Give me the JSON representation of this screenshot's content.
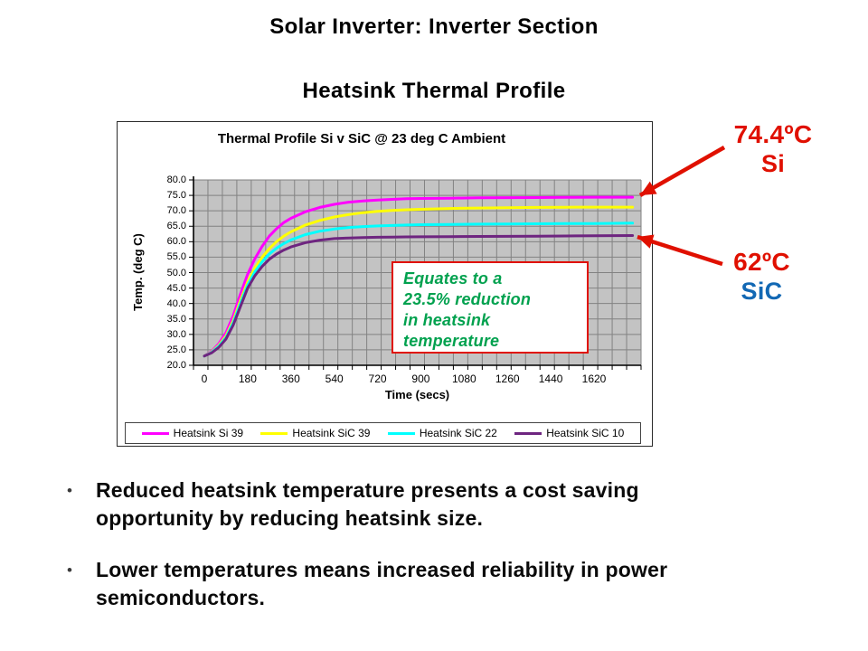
{
  "slide": {
    "title": "Solar Inverter: Inverter Section",
    "subtitle": "Heatsink Thermal Profile",
    "bullets": [
      {
        "lines": [
          "Reduced heatsink temperature presents a cost saving",
          "opportunity by reducing heatsink size."
        ]
      },
      {
        "lines": [
          "Lower temperatures means increased reliability in power",
          "semiconductors."
        ]
      }
    ]
  },
  "callouts": {
    "arrow_color": "#e01000",
    "si": {
      "value": "74.4ºC",
      "label": "Si",
      "value_color": "#e01000",
      "label_color": "#e01000"
    },
    "sic": {
      "value": "62ºC",
      "label": "SiC",
      "value_color": "#e01000",
      "label_color": "#1268b4"
    }
  },
  "chart_data": {
    "type": "line",
    "title": "Thermal Profile Si v SiC @ 23 deg C Ambient",
    "xlabel": "Time (secs)",
    "ylabel": "Temp. (deg C)",
    "xlim": [
      0,
      1780
    ],
    "ylim": [
      20,
      80
    ],
    "x_ticks": [
      0,
      180,
      360,
      540,
      720,
      900,
      1080,
      1260,
      1440,
      1620
    ],
    "y_ticks": [
      20,
      25,
      30,
      35,
      40,
      45,
      50,
      55,
      60,
      65,
      70,
      75,
      80
    ],
    "y_tick_decimals": 1,
    "grid": true,
    "minor_x_grid_cells": 31,
    "plot_bg": "#c3c3c3",
    "grid_color": "#828282",
    "legend_position": "bottom",
    "annotation": {
      "lines": [
        "Equates to a",
        "23.5% reduction",
        "in heatsink",
        "temperature"
      ],
      "text_color": "#00a14e",
      "border_color": "#e01000"
    },
    "series": [
      {
        "name": "Heatsink Si 39",
        "color": "#ff00ff",
        "final_value": 74.4,
        "points": [
          [
            0,
            23
          ],
          [
            30,
            24.5
          ],
          [
            60,
            27
          ],
          [
            90,
            30.5
          ],
          [
            120,
            36
          ],
          [
            150,
            43
          ],
          [
            180,
            49.5
          ],
          [
            210,
            54.5
          ],
          [
            240,
            58.5
          ],
          [
            270,
            61.8
          ],
          [
            300,
            64.2
          ],
          [
            330,
            66.2
          ],
          [
            360,
            67.6
          ],
          [
            420,
            69.7
          ],
          [
            480,
            71.1
          ],
          [
            540,
            72.1
          ],
          [
            600,
            72.8
          ],
          [
            660,
            73.2
          ],
          [
            720,
            73.5
          ],
          [
            780,
            73.7
          ],
          [
            840,
            73.9
          ],
          [
            900,
            74.0
          ],
          [
            1020,
            74.1
          ],
          [
            1140,
            74.2
          ],
          [
            1260,
            74.25
          ],
          [
            1380,
            74.3
          ],
          [
            1500,
            74.35
          ],
          [
            1620,
            74.4
          ],
          [
            1780,
            74.4
          ]
        ]
      },
      {
        "name": "Heatsink SiC 39",
        "color": "#ffff00",
        "final_value": 71.2,
        "points": [
          [
            0,
            23
          ],
          [
            30,
            24.3
          ],
          [
            60,
            26.5
          ],
          [
            90,
            29.5
          ],
          [
            120,
            34.5
          ],
          [
            150,
            41
          ],
          [
            180,
            47
          ],
          [
            210,
            51.5
          ],
          [
            240,
            55
          ],
          [
            270,
            57.8
          ],
          [
            300,
            60
          ],
          [
            330,
            61.8
          ],
          [
            360,
            63.2
          ],
          [
            420,
            65.4
          ],
          [
            480,
            66.9
          ],
          [
            540,
            68
          ],
          [
            600,
            68.8
          ],
          [
            660,
            69.4
          ],
          [
            720,
            69.8
          ],
          [
            780,
            70.1
          ],
          [
            840,
            70.35
          ],
          [
            900,
            70.5
          ],
          [
            1020,
            70.75
          ],
          [
            1140,
            70.9
          ],
          [
            1260,
            71.0
          ],
          [
            1380,
            71.1
          ],
          [
            1500,
            71.15
          ],
          [
            1620,
            71.2
          ],
          [
            1780,
            71.2
          ]
        ]
      },
      {
        "name": "Heatsink SiC 22",
        "color": "#00ffff",
        "final_value": 66.0,
        "points": [
          [
            0,
            23
          ],
          [
            30,
            24.2
          ],
          [
            60,
            26.2
          ],
          [
            90,
            29
          ],
          [
            120,
            33.8
          ],
          [
            150,
            40
          ],
          [
            180,
            46
          ],
          [
            210,
            50.3
          ],
          [
            240,
            53.5
          ],
          [
            270,
            56
          ],
          [
            300,
            57.9
          ],
          [
            330,
            59.4
          ],
          [
            360,
            60.6
          ],
          [
            420,
            62.3
          ],
          [
            480,
            63.4
          ],
          [
            540,
            64.1
          ],
          [
            600,
            64.6
          ],
          [
            660,
            64.9
          ],
          [
            720,
            65.1
          ],
          [
            780,
            65.25
          ],
          [
            840,
            65.4
          ],
          [
            900,
            65.5
          ],
          [
            1020,
            65.6
          ],
          [
            1140,
            65.7
          ],
          [
            1260,
            65.75
          ],
          [
            1380,
            65.8
          ],
          [
            1500,
            65.85
          ],
          [
            1620,
            65.9
          ],
          [
            1780,
            66.0
          ]
        ]
      },
      {
        "name": "Heatsink SiC 10",
        "color": "#6e2580",
        "final_value": 62.0,
        "points": [
          [
            0,
            23
          ],
          [
            30,
            24
          ],
          [
            60,
            25.8
          ],
          [
            90,
            28.5
          ],
          [
            120,
            33
          ],
          [
            150,
            39
          ],
          [
            180,
            45
          ],
          [
            210,
            49
          ],
          [
            240,
            52
          ],
          [
            270,
            54.3
          ],
          [
            300,
            56
          ],
          [
            330,
            57.3
          ],
          [
            360,
            58.3
          ],
          [
            420,
            59.7
          ],
          [
            480,
            60.5
          ],
          [
            540,
            61.0
          ],
          [
            600,
            61.2
          ],
          [
            660,
            61.35
          ],
          [
            720,
            61.45
          ],
          [
            780,
            61.5
          ],
          [
            840,
            61.55
          ],
          [
            900,
            61.6
          ],
          [
            1020,
            61.65
          ],
          [
            1140,
            61.7
          ],
          [
            1260,
            61.75
          ],
          [
            1380,
            61.8
          ],
          [
            1500,
            61.85
          ],
          [
            1620,
            61.95
          ],
          [
            1780,
            62.0
          ]
        ]
      }
    ]
  }
}
